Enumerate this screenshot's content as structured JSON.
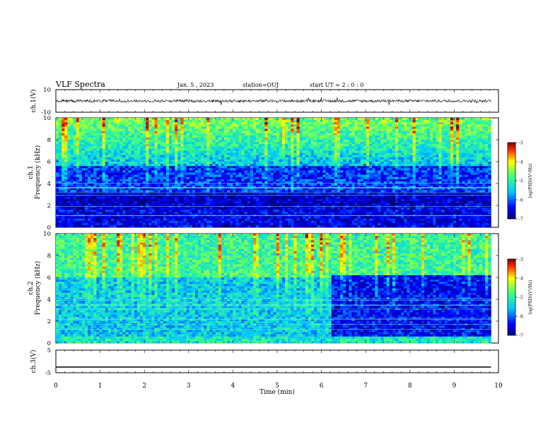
{
  "header": {
    "title": "VLF Spectra",
    "date": "Jan. 5 , 2023",
    "station": "station=OUJ",
    "start": "start UT =  2 : 0  : 0"
  },
  "panels": {
    "ch1_wave": {
      "ylabel": "ch.1(V)",
      "yticks": [
        "10",
        "-10"
      ]
    },
    "ch1_spec": {
      "ylabel_a": "ch.1",
      "ylabel_b": "Frequency (kHz)",
      "yticks": [
        "0",
        "2",
        "4",
        "6",
        "8",
        "10"
      ]
    },
    "ch2_spec": {
      "ylabel_a": "ch.2",
      "ylabel_b": "Frequency (kHz)",
      "yticks": [
        "0",
        "2",
        "4",
        "6",
        "8",
        "10"
      ]
    },
    "ch3_wave": {
      "ylabel": "ch.3(V)",
      "yticks": [
        "5",
        "-5"
      ]
    }
  },
  "xaxis": {
    "label": "Time (min)",
    "ticks": [
      "0",
      "1",
      "2",
      "3",
      "4",
      "5",
      "6",
      "7",
      "8",
      "9",
      "10"
    ]
  },
  "colorbar": {
    "ticks": [
      "-3",
      "-4",
      "-5",
      "-6",
      "-7"
    ],
    "label": "log(PSD)(V²/Hz)"
  },
  "chart_data": [
    {
      "type": "line",
      "title": "",
      "ylabel": "ch.1(V)",
      "xlabel": "",
      "xlim": [
        0,
        10
      ],
      "ylim": [
        -10,
        10
      ],
      "data_end_min": 9.83,
      "series": [
        {
          "values_note": "noisy trace around ~0 V",
          "mean": 0,
          "amplitude": 1.2
        }
      ]
    },
    {
      "type": "heatmap",
      "ylabel": "Frequency (kHz)",
      "xlim": [
        0,
        10
      ],
      "ylim": [
        0,
        10
      ],
      "zlim": [
        -7,
        -3
      ],
      "data_end_min": 9.83
    },
    {
      "type": "heatmap",
      "ylabel": "Frequency (kHz)",
      "xlim": [
        0,
        10
      ],
      "ylim": [
        0,
        10
      ],
      "zlim": [
        -7,
        -3
      ],
      "data_end_min": 9.83,
      "quiet_after_min": 6.2
    },
    {
      "type": "line",
      "ylabel": "ch.3(V)",
      "xlim": [
        0,
        10
      ],
      "ylim": [
        -5,
        5
      ],
      "data_end_min": 9.83,
      "series": [
        {
          "constant": -2.5
        }
      ]
    }
  ],
  "colors": {
    "axis": "#000000",
    "colormap": "jet"
  }
}
